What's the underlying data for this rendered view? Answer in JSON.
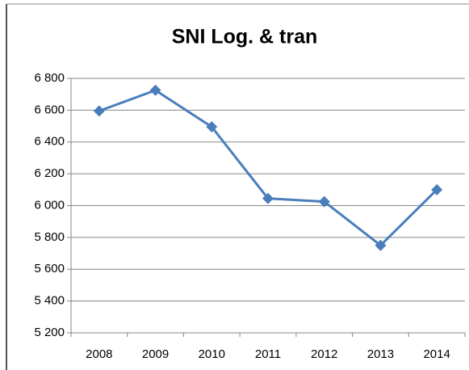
{
  "chart_data": {
    "type": "line",
    "title": "SNI Log. & tran",
    "categories": [
      "2008",
      "2009",
      "2010",
      "2011",
      "2012",
      "2013",
      "2014"
    ],
    "values": [
      6595,
      6725,
      6495,
      6045,
      6025,
      5750,
      6100
    ],
    "color": "#4a7ebb",
    "ylim": [
      5200,
      6800
    ],
    "yticks": [
      {
        "value": 5200,
        "label": "5 200"
      },
      {
        "value": 5400,
        "label": "5 400"
      },
      {
        "value": 5600,
        "label": "5 600"
      },
      {
        "value": 5800,
        "label": "5 800"
      },
      {
        "value": 6000,
        "label": "6 000"
      },
      {
        "value": 6200,
        "label": "6 200"
      },
      {
        "value": 6400,
        "label": "6 400"
      },
      {
        "value": 6600,
        "label": "6 600"
      },
      {
        "value": 6800,
        "label": "6 800"
      }
    ],
    "grid": true
  }
}
